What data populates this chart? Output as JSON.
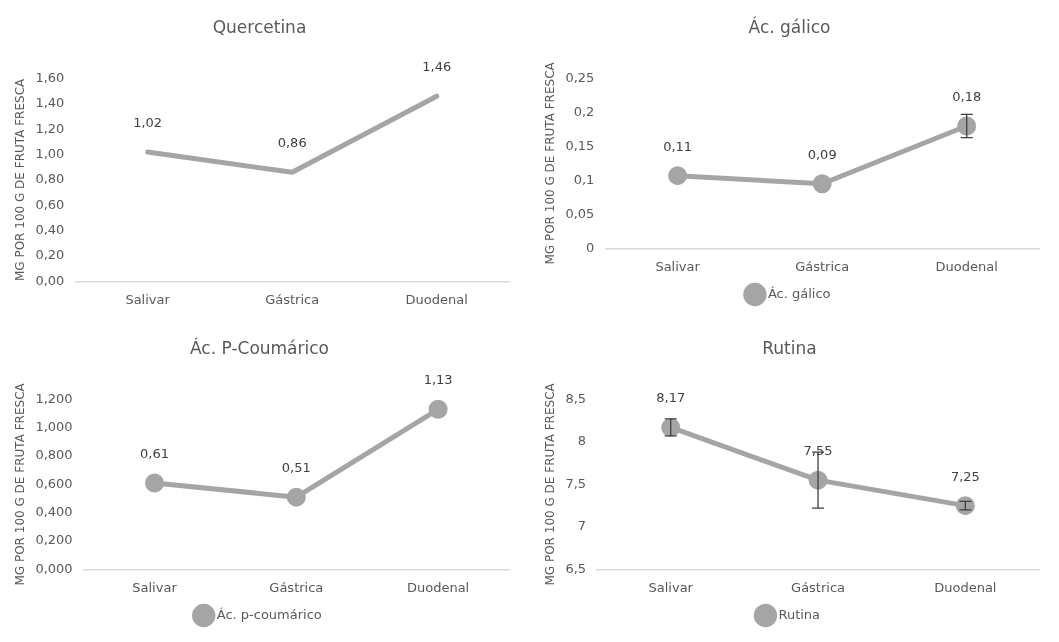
{
  "chart_data": [
    {
      "type": "line",
      "title": "Quercetina",
      "ylabel": "MG POR 100 G DE FRUTA FRESCA",
      "categories": [
        "Salivar",
        "Gástrica",
        "Duodenal"
      ],
      "series": [
        {
          "color": "#a5a5a5",
          "values": [
            1.02,
            0.86,
            1.46
          ],
          "value_labels": [
            "1,02",
            "0,86",
            "1,46"
          ]
        }
      ],
      "ylim": [
        0,
        1.6
      ],
      "yticks": [
        {
          "value": 0,
          "label": "0,00"
        },
        {
          "value": 0.2,
          "label": "0,20"
        },
        {
          "value": 0.4,
          "label": "0,40"
        },
        {
          "value": 0.6,
          "label": "0,60"
        },
        {
          "value": 0.8,
          "label": "0,80"
        },
        {
          "value": 1,
          "label": "1,00"
        },
        {
          "value": 1.2,
          "label": "1,20"
        },
        {
          "value": 1.4,
          "label": "1,40"
        },
        {
          "value": 1.6,
          "label": "1,60"
        }
      ],
      "marker": "none",
      "legend": false
    },
    {
      "type": "line",
      "title": "Ác. gálico",
      "ylabel": "MG POR 100 G DE FRUTA FRESCA",
      "categories": [
        "Salivar",
        "Gástrica",
        "Duodenal"
      ],
      "series": [
        {
          "name": "Ác. gálico",
          "color": "#a5a5a5",
          "values": [
            0.107,
            0.095,
            0.18
          ],
          "errors": [
            null,
            null,
            0.017
          ],
          "value_labels": [
            "0,11",
            "0,09",
            "0,18"
          ]
        }
      ],
      "ylim": [
        0,
        0.25
      ],
      "yticks": [
        {
          "value": 0,
          "label": "0"
        },
        {
          "value": 0.05,
          "label": "0,05"
        },
        {
          "value": 0.1,
          "label": "0,1"
        },
        {
          "value": 0.15,
          "label": "0,15"
        },
        {
          "value": 0.2,
          "label": "0,2"
        },
        {
          "value": 0.25,
          "label": "0,25"
        }
      ],
      "marker": "circle",
      "legend": "bottom"
    },
    {
      "type": "line",
      "title": "Ác. P-Coumárico",
      "ylabel": "MG POR 100 G DE FRUTA FRESCA",
      "categories": [
        "Salivar",
        "Gástrica",
        "Duodenal"
      ],
      "series": [
        {
          "name": "Ác. p-coumárico",
          "color": "#a5a5a5",
          "values": [
            0.61,
            0.51,
            1.13
          ],
          "value_labels": [
            "0,61",
            "0,51",
            "1,13"
          ]
        }
      ],
      "ylim": [
        0,
        1.2
      ],
      "yticks": [
        {
          "value": 0,
          "label": "0,000"
        },
        {
          "value": 0.2,
          "label": "0,200"
        },
        {
          "value": 0.4,
          "label": "0,400"
        },
        {
          "value": 0.6,
          "label": "0,600"
        },
        {
          "value": 0.8,
          "label": "0,800"
        },
        {
          "value": 1,
          "label": "1,000"
        },
        {
          "value": 1.2,
          "label": "1,200"
        }
      ],
      "marker": "circle",
      "legend": "bottom"
    },
    {
      "type": "line",
      "title": "Rutina",
      "ylabel": "MG POR 100 G DE FRUTA FRESCA",
      "categories": [
        "Salivar",
        "Gástrica",
        "Duodenal"
      ],
      "series": [
        {
          "name": "Rutina",
          "color": "#a5a5a5",
          "values": [
            8.17,
            7.55,
            7.25
          ],
          "errors": [
            0.1,
            0.33,
            0.05
          ],
          "value_labels": [
            "8,17",
            "7,55",
            "7,25"
          ]
        }
      ],
      "ylim": [
        6.5,
        8.5
      ],
      "yticks": [
        {
          "value": 6.5,
          "label": "6,5"
        },
        {
          "value": 7,
          "label": "7"
        },
        {
          "value": 7.5,
          "label": "7,5"
        },
        {
          "value": 8,
          "label": "8"
        },
        {
          "value": 8.5,
          "label": "8,5"
        }
      ],
      "marker": "circle",
      "legend": "bottom"
    }
  ]
}
